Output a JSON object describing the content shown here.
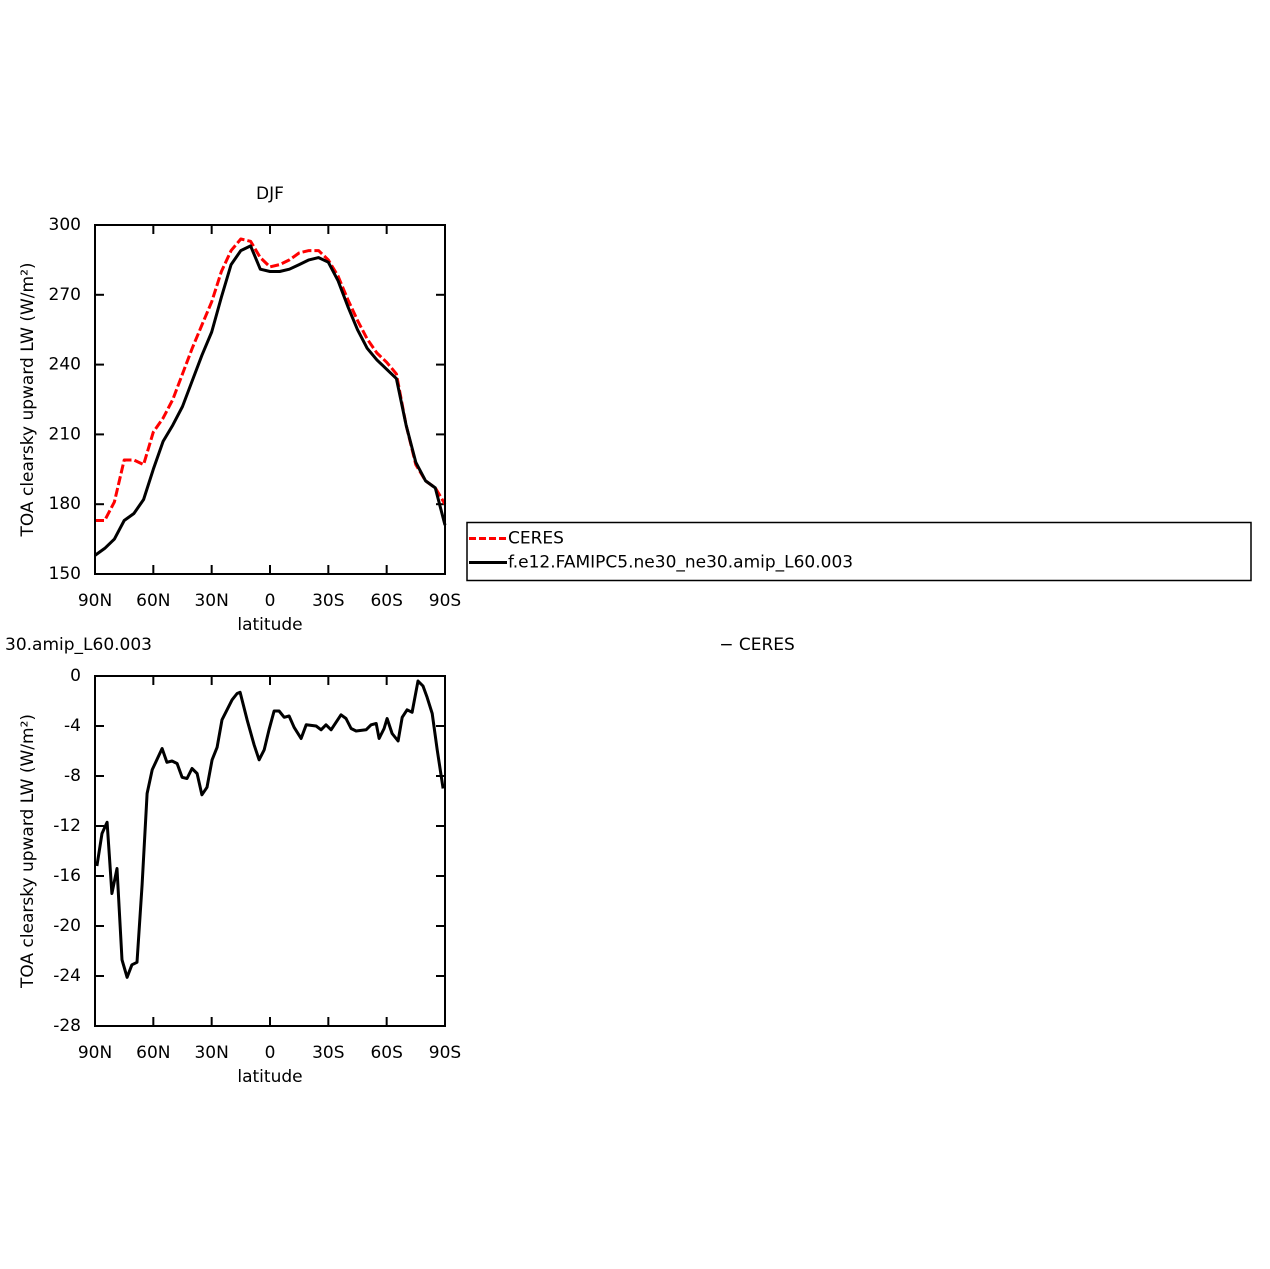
{
  "chart_data": [
    {
      "type": "line",
      "title": "DJF",
      "ylabel": "TOA clearsky upward LW (W/m²)",
      "xlabel": "latitude",
      "x": [
        90,
        85,
        80,
        75,
        70,
        65,
        60,
        55,
        50,
        45,
        40,
        35,
        30,
        25,
        20,
        15,
        10,
        5,
        0,
        -5,
        -10,
        -15,
        -20,
        -25,
        -30,
        -35,
        -40,
        -45,
        -50,
        -55,
        -60,
        -65,
        -70,
        -75,
        -80,
        -85,
        -90
      ],
      "series": [
        {
          "name": "CERES",
          "color": "#ff0000",
          "style": "dashed",
          "values": [
            173,
            173,
            181,
            199,
            199,
            197,
            211,
            217,
            225,
            236,
            247,
            257,
            267,
            280,
            289,
            294,
            293,
            286,
            282,
            283,
            285,
            288,
            289,
            289,
            285,
            278,
            268,
            259,
            251,
            245,
            241,
            236,
            214,
            197,
            190,
            187,
            180
          ]
        },
        {
          "name": "f.e12.FAMIPC5.ne30_ne30.amip_L60.003",
          "color": "#000000",
          "style": "solid",
          "values": [
            158,
            161,
            165,
            173,
            176,
            182,
            195,
            207,
            214,
            222,
            233,
            244,
            254,
            269,
            283,
            289,
            291,
            281,
            280,
            280,
            281,
            283,
            285,
            286,
            284,
            276,
            265,
            255,
            247,
            242,
            238,
            234,
            214,
            198,
            190,
            187,
            171
          ]
        }
      ],
      "xlim": [
        90,
        -90
      ],
      "xticks": [
        {
          "value": 90,
          "label": "90N"
        },
        {
          "value": 60,
          "label": "60N"
        },
        {
          "value": 30,
          "label": "30N"
        },
        0,
        {
          "value": -30,
          "label": "30S"
        },
        {
          "value": -60,
          "label": "60S"
        },
        {
          "value": -90,
          "label": "90S"
        }
      ],
      "ylim": [
        150,
        300
      ],
      "yticks": [
        150,
        180,
        210,
        240,
        270,
        300
      ],
      "legend": "right"
    },
    {
      "type": "line",
      "title_left": "30.amip_L60.003",
      "title_right": "− CERES",
      "ylabel": "TOA clearsky upward LW (W/m²)",
      "xlabel": "latitude",
      "x": [
        89.0,
        86.4,
        83.8,
        81.3,
        78.7,
        76.1,
        73.5,
        71.0,
        68.4,
        65.8,
        63.2,
        60.6,
        55.5,
        53.0,
        50.4,
        47.8,
        45.2,
        42.7,
        40.1,
        37.5,
        35.0,
        32.4,
        29.8,
        27.2,
        24.7,
        19.5,
        16.9,
        15.4,
        11.8,
        8.2,
        5.6,
        3.0,
        0.5,
        -2.1,
        -4.7,
        -7.3,
        -9.8,
        -12.4,
        -16.0,
        -18.6,
        -23.7,
        -26.3,
        -28.8,
        -31.4,
        -36.5,
        -39.1,
        -41.7,
        -44.3,
        -49.4,
        -52.0,
        -54.6,
        -56.1,
        -58.7,
        -60.2,
        -62.8,
        -65.9,
        -68.0,
        -70.5,
        -73.1,
        -76.1,
        -78.7,
        -80.8,
        -83.4,
        -86.0,
        -89.0
      ],
      "series": [
        {
          "color": "#000000",
          "style": "solid",
          "values": [
            -15.2,
            -12.6,
            -11.7,
            -17.4,
            -15.4,
            -22.7,
            -24.1,
            -23.1,
            -22.9,
            -16.7,
            -9.4,
            -7.5,
            -5.8,
            -6.9,
            -6.8,
            -7.0,
            -8.1,
            -8.2,
            -7.4,
            -7.8,
            -9.5,
            -8.9,
            -6.7,
            -5.7,
            -3.5,
            -1.9,
            -1.4,
            -1.3,
            -3.5,
            -5.5,
            -6.7,
            -5.9,
            -4.3,
            -2.8,
            -2.8,
            -3.3,
            -3.2,
            -4.1,
            -5.0,
            -3.9,
            -4.0,
            -4.3,
            -3.9,
            -4.3,
            -3.1,
            -3.4,
            -4.2,
            -4.4,
            -4.3,
            -3.9,
            -3.8,
            -5.0,
            -4.2,
            -3.4,
            -4.6,
            -5.2,
            -3.3,
            -2.7,
            -2.9,
            -0.4,
            -0.8,
            -1.7,
            -3.0,
            -5.9,
            -9.0
          ]
        }
      ],
      "xlim": [
        90,
        -90
      ],
      "xticks": [
        {
          "value": 90,
          "label": "90N"
        },
        {
          "value": 60,
          "label": "60N"
        },
        {
          "value": 30,
          "label": "30N"
        },
        0,
        {
          "value": -30,
          "label": "30S"
        },
        {
          "value": -60,
          "label": "60S"
        },
        {
          "value": -90,
          "label": "90S"
        }
      ],
      "ylim": [
        -28,
        0
      ],
      "yticks": [
        -28,
        -24,
        -20,
        -16,
        -12,
        -8,
        -4,
        0
      ]
    }
  ]
}
